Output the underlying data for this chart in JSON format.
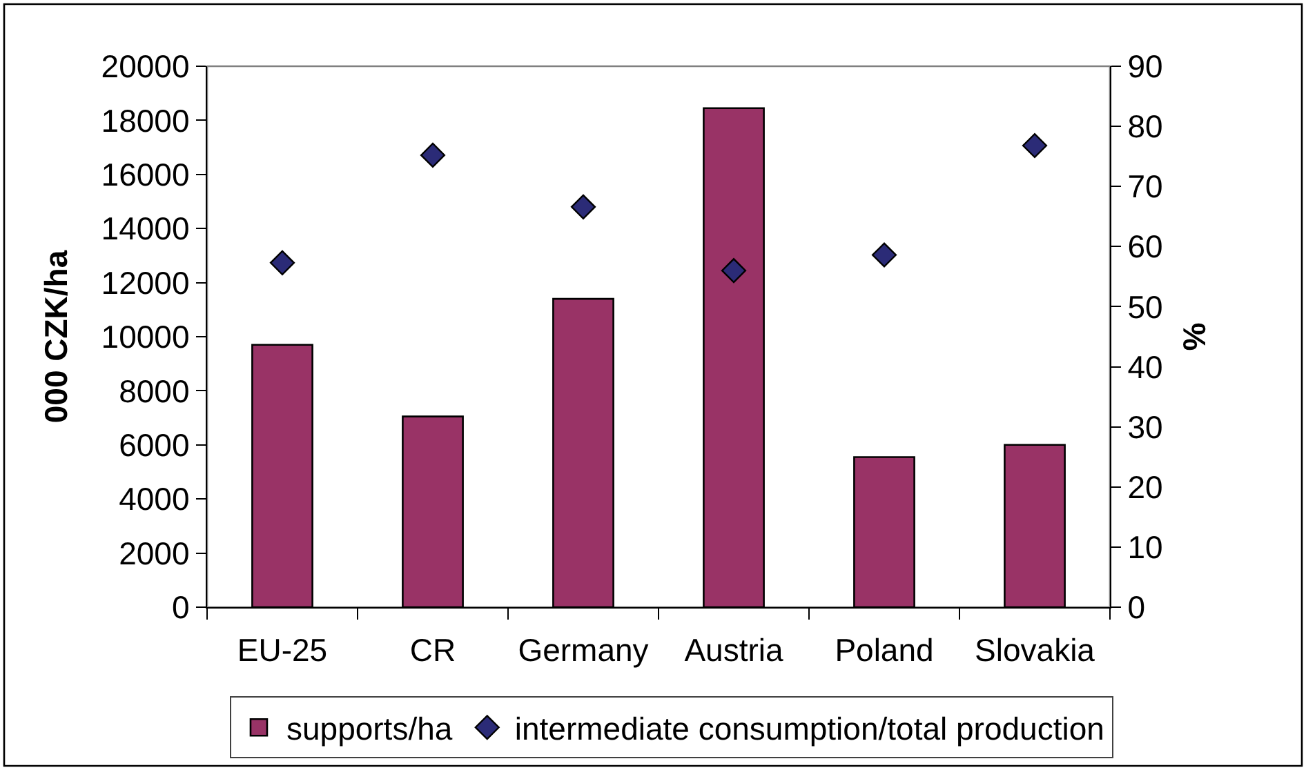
{
  "chart_data": {
    "type": "bar",
    "categories": [
      "EU-25",
      "CR",
      "Germany",
      "Austria",
      "Poland",
      "Slovakia"
    ],
    "ylabel": "000 CZK/ha",
    "y2label": "%",
    "ylim": [
      0,
      20000
    ],
    "yticks": [
      0,
      2000,
      4000,
      6000,
      8000,
      10000,
      12000,
      14000,
      16000,
      18000,
      20000
    ],
    "y2lim": [
      0,
      90
    ],
    "y2ticks": [
      0,
      10,
      20,
      30,
      40,
      50,
      60,
      70,
      80,
      90
    ],
    "series": [
      {
        "name": "supports/ha",
        "color": "#993366",
        "values": [
          9700,
          7050,
          11400,
          18450,
          5550,
          6000
        ]
      },
      {
        "name": "intermediate consumption/total production",
        "type": "scatter",
        "axis": "y2",
        "color": "#2b2b77",
        "values": [
          57.3,
          75.2,
          66.6,
          56.0,
          58.6,
          76.8
        ]
      }
    ],
    "legend": "bottom",
    "grid": false,
    "marker": "diamond"
  }
}
